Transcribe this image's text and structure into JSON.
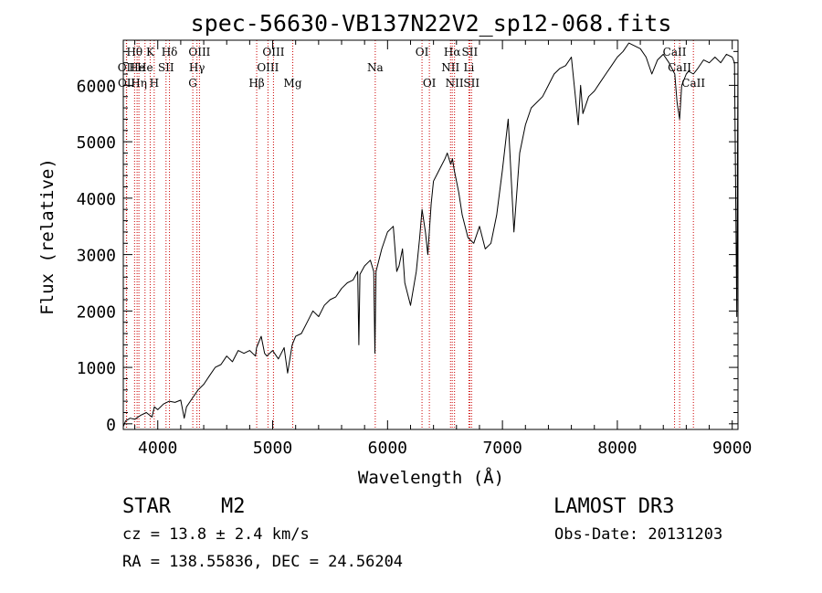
{
  "chart_data": {
    "type": "line",
    "title": "spec-56630-VB137N22V2_sp12-068.fits",
    "xlabel": "Wavelength (Å)",
    "ylabel": "Flux (relative)",
    "xlim": [
      3700,
      9050
    ],
    "ylim": [
      -100,
      6800
    ],
    "xticks": [
      4000,
      5000,
      6000,
      7000,
      8000,
      9000
    ],
    "yticks": [
      0,
      1000,
      2000,
      3000,
      4000,
      5000,
      6000
    ],
    "series": [
      {
        "name": "flux",
        "x": [
          3700,
          3720,
          3760,
          3800,
          3850,
          3900,
          3950,
          3970,
          4000,
          4050,
          4100,
          4150,
          4200,
          4230,
          4250,
          4300,
          4350,
          4400,
          4450,
          4500,
          4550,
          4600,
          4650,
          4700,
          4750,
          4800,
          4850,
          4860,
          4900,
          4930,
          4950,
          5000,
          5050,
          5100,
          5130,
          5170,
          5200,
          5250,
          5300,
          5350,
          5400,
          5450,
          5500,
          5550,
          5600,
          5650,
          5700,
          5740,
          5750,
          5760,
          5800,
          5850,
          5880,
          5890,
          5900,
          5950,
          6000,
          6050,
          6080,
          6100,
          6130,
          6150,
          6200,
          6250,
          6280,
          6300,
          6330,
          6350,
          6380,
          6400,
          6450,
          6500,
          6520,
          6550,
          6565,
          6580,
          6600,
          6620,
          6650,
          6700,
          6750,
          6800,
          6850,
          6900,
          6950,
          7000,
          7050,
          7080,
          7100,
          7150,
          7200,
          7250,
          7300,
          7350,
          7400,
          7450,
          7500,
          7550,
          7600,
          7640,
          7660,
          7680,
          7700,
          7750,
          7800,
          7850,
          7900,
          7950,
          8000,
          8050,
          8100,
          8150,
          8200,
          8250,
          8300,
          8350,
          8400,
          8450,
          8500,
          8520,
          8542,
          8560,
          8600,
          8620,
          8662,
          8700,
          8750,
          8800,
          8850,
          8900,
          8950,
          9000,
          9020,
          9040,
          9050
        ],
        "y": [
          -50,
          50,
          100,
          80,
          150,
          200,
          120,
          300,
          250,
          350,
          400,
          380,
          420,
          100,
          300,
          450,
          600,
          700,
          850,
          1000,
          1050,
          1200,
          1100,
          1300,
          1250,
          1300,
          1200,
          1350,
          1550,
          1250,
          1200,
          1300,
          1150,
          1350,
          900,
          1400,
          1550,
          1600,
          1800,
          2000,
          1900,
          2100,
          2200,
          2250,
          2400,
          2500,
          2550,
          2700,
          1400,
          2650,
          2800,
          2900,
          2700,
          1250,
          2700,
          3100,
          3400,
          3500,
          2700,
          2800,
          3100,
          2500,
          2100,
          2700,
          3300,
          3800,
          3400,
          3000,
          3900,
          4300,
          4500,
          4700,
          4800,
          4600,
          4700,
          4500,
          4300,
          4100,
          3700,
          3300,
          3200,
          3500,
          3100,
          3200,
          3700,
          4500,
          5400,
          4200,
          3400,
          4800,
          5300,
          5600,
          5700,
          5800,
          6000,
          6200,
          6300,
          6350,
          6500,
          5700,
          5300,
          6000,
          5500,
          5800,
          5900,
          6050,
          6200,
          6350,
          6500,
          6600,
          6750,
          6700,
          6650,
          6500,
          6200,
          6450,
          6550,
          6400,
          6200,
          5700,
          5400,
          6000,
          6200,
          6250,
          6200,
          6300,
          6450,
          6400,
          6500,
          6400,
          6550,
          6500,
          6400,
          1900,
          6550
        ],
        "color": "#000000"
      }
    ],
    "line_labels": [
      {
        "name": "Hθ",
        "wavelength": 3798,
        "row": 1
      },
      {
        "name": "OII",
        "wavelength": 3727,
        "row": 2
      },
      {
        "name": "OII",
        "wavelength": 3729,
        "row": 3
      },
      {
        "name": "He",
        "wavelength": 3820,
        "row": 2
      },
      {
        "name": "Hη",
        "wavelength": 3836,
        "row": 3
      },
      {
        "name": "K",
        "wavelength": 3934,
        "row": 1
      },
      {
        "name": "He",
        "wavelength": 3889,
        "row": 2
      },
      {
        "name": "H",
        "wavelength": 3969,
        "row": 3
      },
      {
        "name": "Hδ",
        "wavelength": 4102,
        "row": 1
      },
      {
        "name": "SII",
        "wavelength": 4072,
        "row": 2
      },
      {
        "name": "OIII",
        "wavelength": 4363,
        "row": 1
      },
      {
        "name": "Hγ",
        "wavelength": 4341,
        "row": 2
      },
      {
        "name": "G",
        "wavelength": 4305,
        "row": 3
      },
      {
        "name": "Hβ",
        "wavelength": 4861,
        "row": 3
      },
      {
        "name": "OIII",
        "wavelength": 5007,
        "row": 1
      },
      {
        "name": "OIII",
        "wavelength": 4959,
        "row": 2
      },
      {
        "name": "Mg",
        "wavelength": 5175,
        "row": 3
      },
      {
        "name": "Na",
        "wavelength": 5893,
        "row": 2
      },
      {
        "name": "OI",
        "wavelength": 6300,
        "row": 1
      },
      {
        "name": "OI",
        "wavelength": 6364,
        "row": 3
      },
      {
        "name": "Hα",
        "wavelength": 6563,
        "row": 1
      },
      {
        "name": "SII",
        "wavelength": 6716,
        "row": 1
      },
      {
        "name": "NII",
        "wavelength": 6548,
        "row": 2
      },
      {
        "name": "Li",
        "wavelength": 6708,
        "row": 2
      },
      {
        "name": "NII",
        "wavelength": 6583,
        "row": 3
      },
      {
        "name": "SII",
        "wavelength": 6731,
        "row": 3
      },
      {
        "name": "CaII",
        "wavelength": 8498,
        "row": 1
      },
      {
        "name": "CaII",
        "wavelength": 8542,
        "row": 2
      },
      {
        "name": "CaII",
        "wavelength": 8662,
        "row": 3
      }
    ],
    "line_markers": [
      3727,
      3729,
      3798,
      3820,
      3836,
      3889,
      3934,
      3969,
      4072,
      4102,
      4305,
      4341,
      4363,
      4861,
      4959,
      5007,
      5175,
      5893,
      6300,
      6364,
      6548,
      6563,
      6583,
      6708,
      6716,
      6731,
      8498,
      8542,
      8662
    ],
    "marker_color": "#cc0000"
  },
  "info": {
    "class": "STAR",
    "subclass": "M2",
    "cz": "cz = 13.8 ± 2.4 km/s",
    "coords": "RA = 138.55836, DEC =  24.56204",
    "survey": "LAMOST DR3",
    "obs_date": "Obs-Date: 20131203"
  }
}
